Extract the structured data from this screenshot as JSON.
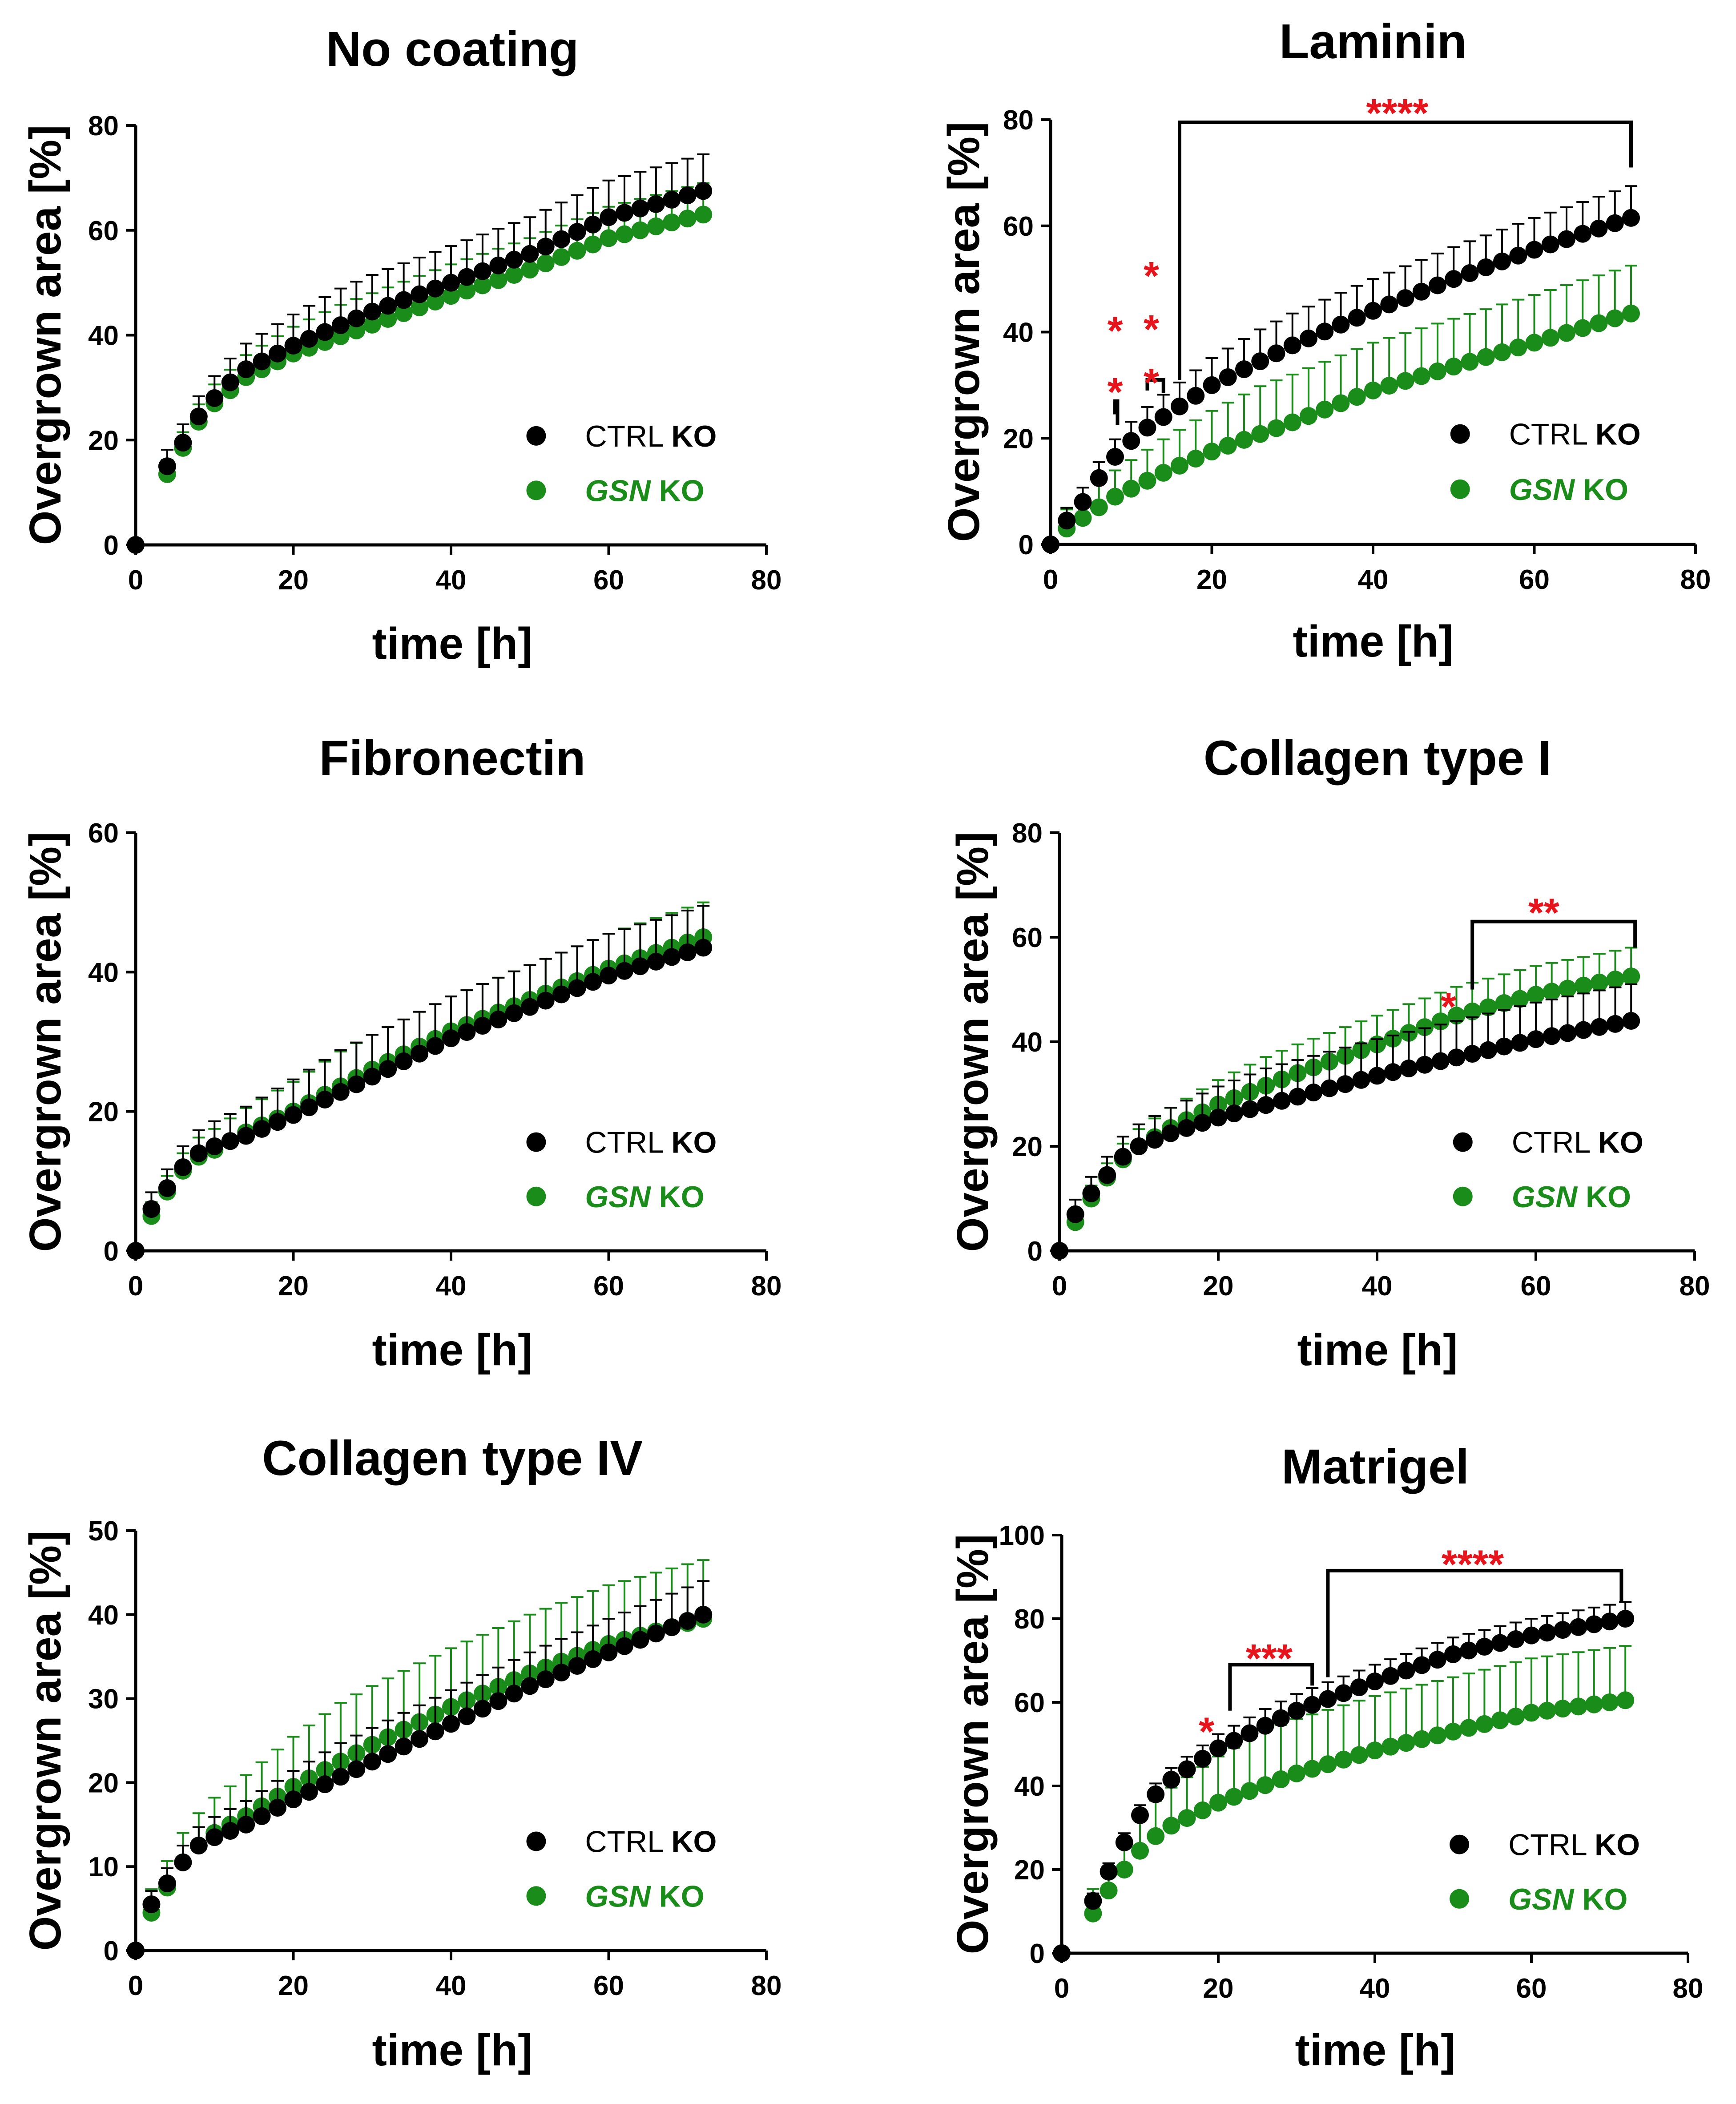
{
  "colors": {
    "ctrl": "#000000",
    "gsn": "#1a8c1a",
    "significance": "#e8141c"
  },
  "legend": {
    "ctrl_prefix": "CTRL ",
    "ctrl_bold": "KO",
    "gsn_italic": "GSN",
    "gsn_suffix": " KO"
  },
  "chart_data": [
    {
      "type": "scatter",
      "title": "No coating",
      "xlabel": "time [h]",
      "ylabel": "Overgrown area [%]",
      "xlim": [
        0,
        80
      ],
      "ylim": [
        0,
        80
      ],
      "xticks": [
        "0",
        "20",
        "40",
        "60",
        "80"
      ],
      "yticks": [
        "0",
        "20",
        "40",
        "60",
        "80"
      ],
      "series": [
        {
          "name": "CTRL KO",
          "anchors": [
            [
              0,
              0
            ],
            [
              4,
              15
            ],
            [
              6,
              19.5
            ],
            [
              8,
              24.5
            ],
            [
              10,
              28
            ],
            [
              12,
              31
            ],
            [
              14,
              33.5
            ],
            [
              20,
              38
            ],
            [
              30,
              44.5
            ],
            [
              40,
              50
            ],
            [
              50,
              55.5
            ],
            [
              60,
              62.5
            ],
            [
              72,
              67.5
            ]
          ],
          "err": 7
        },
        {
          "name": "GSN KO",
          "anchors": [
            [
              0,
              0
            ],
            [
              4,
              13.5
            ],
            [
              6,
              18.5
            ],
            [
              8,
              23.5
            ],
            [
              10,
              27
            ],
            [
              12,
              29.5
            ],
            [
              14,
              32
            ],
            [
              20,
              36.5
            ],
            [
              30,
              42
            ],
            [
              40,
              47.5
            ],
            [
              50,
              52.5
            ],
            [
              60,
              58.5
            ],
            [
              72,
              63
            ]
          ],
          "err": 6
        }
      ],
      "significance": []
    },
    {
      "type": "scatter",
      "title": "Laminin",
      "xlabel": "time [h]",
      "ylabel": "Overgrown area [%]",
      "xlim": [
        0,
        80
      ],
      "ylim": [
        0,
        80
      ],
      "xticks": [
        "0",
        "20",
        "40",
        "60",
        "80"
      ],
      "yticks": [
        "0",
        "20",
        "40",
        "60",
        "80"
      ],
      "series": [
        {
          "name": "CTRL KO",
          "anchors": [
            [
              0,
              0
            ],
            [
              2,
              4.5
            ],
            [
              4,
              8
            ],
            [
              6,
              12.5
            ],
            [
              8,
              16.5
            ],
            [
              10,
              19.5
            ],
            [
              12,
              22
            ],
            [
              14,
              24
            ],
            [
              20,
              30
            ],
            [
              30,
              37.5
            ],
            [
              40,
              44
            ],
            [
              50,
              50
            ],
            [
              60,
              55.5
            ],
            [
              72,
              61.5
            ]
          ],
          "err": 6
        },
        {
          "name": "GSN KO",
          "anchors": [
            [
              0,
              0
            ],
            [
              2,
              3
            ],
            [
              4,
              5
            ],
            [
              6,
              7
            ],
            [
              8,
              9
            ],
            [
              10,
              10.5
            ],
            [
              12,
              12
            ],
            [
              14,
              13.5
            ],
            [
              20,
              17.5
            ],
            [
              30,
              23
            ],
            [
              40,
              29
            ],
            [
              50,
              33.5
            ],
            [
              60,
              38
            ],
            [
              72,
              43.5
            ]
          ],
          "err": 9
        }
      ],
      "significance": [
        {
          "type": "bracket",
          "label": "*",
          "x1": 8,
          "x2": 8.3,
          "bar_y": 27,
          "tick_y1": 24.5,
          "tick_y2": 22.5,
          "label_x": 8,
          "label_y": 29.5,
          "vertical_label": false
        },
        {
          "type": "bracket",
          "label": "*",
          "x1": 8,
          "x2": 8.3,
          "bar_y": 27,
          "tick_y1": 27,
          "tick_y2": 27,
          "label_x": 8,
          "label_y": 41,
          "vertical_label": false,
          "label_only": true
        },
        {
          "type": "bracket",
          "label": "***",
          "x1": 12,
          "x2": 14,
          "bar_y": 31,
          "tick_y1": 29,
          "tick_y2": 28.5,
          "label_x": 12.5,
          "label_y": 48,
          "vertical_label": true
        },
        {
          "type": "bracket",
          "label": "****",
          "x1": 16,
          "x2": 72,
          "bar_y": 79.5,
          "tick_y1": 31,
          "tick_y2": 71,
          "label_x": 43,
          "label_y": 82,
          "vertical_label": false
        }
      ]
    },
    {
      "type": "scatter",
      "title": "Fibronectin",
      "xlabel": "time [h]",
      "ylabel": "Overgrown area [%]",
      "xlim": [
        0,
        80
      ],
      "ylim": [
        0,
        60
      ],
      "xticks": [
        "0",
        "20",
        "40",
        "60",
        "80"
      ],
      "yticks": [
        "0",
        "20",
        "40",
        "60"
      ],
      "series": [
        {
          "name": "CTRL KO",
          "anchors": [
            [
              0,
              0
            ],
            [
              2,
              6
            ],
            [
              4,
              9
            ],
            [
              6,
              12
            ],
            [
              8,
              14
            ],
            [
              10,
              15
            ],
            [
              14,
              16.5
            ],
            [
              20,
              19.5
            ],
            [
              30,
              25
            ],
            [
              40,
              30.5
            ],
            [
              50,
              35
            ],
            [
              60,
              39.5
            ],
            [
              72,
              43.5
            ]
          ],
          "err": 6
        },
        {
          "name": "GSN KO",
          "anchors": [
            [
              0,
              0
            ],
            [
              2,
              5
            ],
            [
              4,
              8.5
            ],
            [
              6,
              11.5
            ],
            [
              8,
              13.5
            ],
            [
              10,
              14.5
            ],
            [
              14,
              17
            ],
            [
              20,
              20
            ],
            [
              30,
              26
            ],
            [
              40,
              31.5
            ],
            [
              50,
              36
            ],
            [
              60,
              40.5
            ],
            [
              72,
              45
            ]
          ],
          "err": 5
        }
      ],
      "significance": []
    },
    {
      "type": "scatter",
      "title": "Collagen type I",
      "xlabel": "time [h]",
      "ylabel": "Overgrown area [%]",
      "xlim": [
        0,
        80
      ],
      "ylim": [
        0,
        80
      ],
      "xticks": [
        "0",
        "20",
        "40",
        "60",
        "80"
      ],
      "yticks": [
        "0",
        "20",
        "40",
        "60",
        "80"
      ],
      "series": [
        {
          "name": "CTRL KO",
          "anchors": [
            [
              0,
              0
            ],
            [
              2,
              7
            ],
            [
              4,
              11
            ],
            [
              6,
              14.5
            ],
            [
              8,
              18
            ],
            [
              10,
              20
            ],
            [
              14,
              22.5
            ],
            [
              20,
              25.5
            ],
            [
              30,
              29.5
            ],
            [
              40,
              33.5
            ],
            [
              50,
              37
            ],
            [
              60,
              40.5
            ],
            [
              72,
              44
            ]
          ],
          "err": 7
        },
        {
          "name": "GSN KO",
          "anchors": [
            [
              0,
              0
            ],
            [
              2,
              5.5
            ],
            [
              4,
              10
            ],
            [
              6,
              14
            ],
            [
              8,
              17.5
            ],
            [
              10,
              20
            ],
            [
              14,
              23.5
            ],
            [
              20,
              28
            ],
            [
              30,
              34
            ],
            [
              40,
              39.5
            ],
            [
              50,
              45
            ],
            [
              60,
              49
            ],
            [
              72,
              52.5
            ]
          ],
          "err": 5.5
        }
      ],
      "significance": [
        {
          "type": "label",
          "label": "*",
          "label_x": 49,
          "label_y": 47.5
        },
        {
          "type": "bracket",
          "label": "**",
          "x1": 52,
          "x2": 72.5,
          "bar_y": 63,
          "tick_y1": 50,
          "tick_y2": 58,
          "label_x": 61,
          "label_y": 65.5,
          "vertical_label": false
        }
      ]
    },
    {
      "type": "scatter",
      "title": "Collagen type IV",
      "xlabel": "time [h]",
      "ylabel": "Overgrown area [%]",
      "xlim": [
        0,
        80
      ],
      "ylim": [
        0,
        50
      ],
      "xticks": [
        "0",
        "20",
        "40",
        "60",
        "80"
      ],
      "yticks": [
        "0",
        "10",
        "20",
        "30",
        "40",
        "50"
      ],
      "series": [
        {
          "name": "CTRL KO",
          "anchors": [
            [
              0,
              0
            ],
            [
              2,
              5.5
            ],
            [
              4,
              8
            ],
            [
              6,
              10.5
            ],
            [
              8,
              12.5
            ],
            [
              10,
              13.5
            ],
            [
              14,
              15
            ],
            [
              20,
              18
            ],
            [
              30,
              22.5
            ],
            [
              40,
              27
            ],
            [
              50,
              31.5
            ],
            [
              60,
              35.5
            ],
            [
              72,
              40
            ]
          ],
          "err": 4
        },
        {
          "name": "GSN KO",
          "anchors": [
            [
              0,
              0
            ],
            [
              2,
              4.5
            ],
            [
              4,
              7.5
            ],
            [
              6,
              10.5
            ],
            [
              8,
              12.5
            ],
            [
              10,
              14
            ],
            [
              14,
              16
            ],
            [
              20,
              19.5
            ],
            [
              30,
              24.5
            ],
            [
              40,
              29
            ],
            [
              50,
              33
            ],
            [
              60,
              36.5
            ],
            [
              72,
              39.5
            ]
          ],
          "err": 7
        }
      ],
      "significance": []
    },
    {
      "type": "scatter",
      "title": "Matrigel",
      "xlabel": "time [h]",
      "ylabel": "Overgrown area [%]",
      "xlim": [
        0,
        80
      ],
      "ylim": [
        0,
        100
      ],
      "xticks": [
        "0",
        "20",
        "40",
        "60",
        "80"
      ],
      "yticks": [
        "0",
        "20",
        "40",
        "60",
        "80",
        "100"
      ],
      "series": [
        {
          "name": "CTRL KO",
          "anchors": [
            [
              0,
              0
            ],
            [
              4,
              12.5
            ],
            [
              6,
              19.5
            ],
            [
              8,
              26.5
            ],
            [
              10,
              33
            ],
            [
              12,
              38
            ],
            [
              14,
              41.5
            ],
            [
              20,
              49
            ],
            [
              30,
              58
            ],
            [
              40,
              65
            ],
            [
              50,
              71.5
            ],
            [
              60,
              76
            ],
            [
              72,
              80
            ]
          ],
          "err": 4
        },
        {
          "name": "GSN KO",
          "anchors": [
            [
              0,
              0
            ],
            [
              4,
              9.5
            ],
            [
              6,
              15
            ],
            [
              8,
              20
            ],
            [
              10,
              24.5
            ],
            [
              12,
              28
            ],
            [
              14,
              30.5
            ],
            [
              20,
              36
            ],
            [
              30,
              43
            ],
            [
              40,
              48.5
            ],
            [
              50,
              53
            ],
            [
              60,
              57.5
            ],
            [
              72,
              60.5
            ]
          ],
          "err": 13
        }
      ],
      "significance": [
        {
          "type": "label",
          "label": "*",
          "label_x": 18.5,
          "label_y": 54
        },
        {
          "type": "bracket",
          "label": "***",
          "x1": 21.5,
          "x2": 32,
          "bar_y": 69,
          "tick_y1": 58,
          "tick_y2": 64,
          "label_x": 26.5,
          "label_y": 71.5,
          "vertical_label": false
        },
        {
          "type": "bracket",
          "label": "****",
          "x1": 34,
          "x2": 71.5,
          "bar_y": 91.5,
          "tick_y1": 66,
          "tick_y2": 84,
          "label_x": 52.5,
          "label_y": 94,
          "vertical_label": false
        }
      ]
    }
  ]
}
